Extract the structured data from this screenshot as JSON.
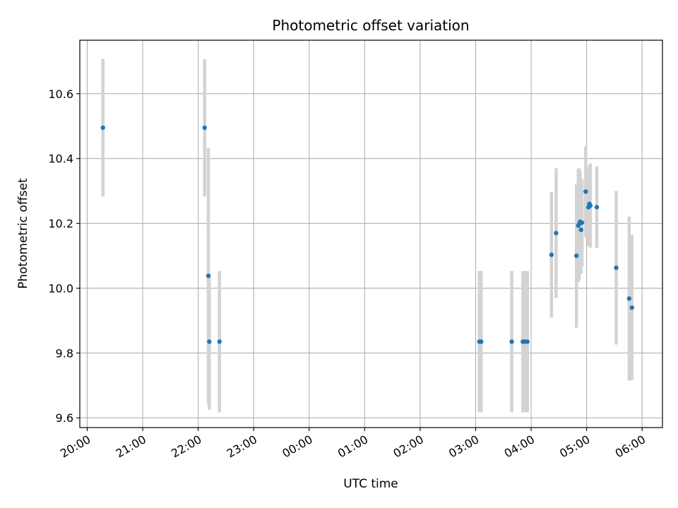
{
  "chart_data": {
    "type": "scatter",
    "title": "Photometric offset variation",
    "xlabel": "UTC time",
    "ylabel": "Photometric offset",
    "x_is_time": true,
    "xlim": [
      "19:52",
      "06:22"
    ],
    "ylim": [
      9.57,
      10.765
    ],
    "x_ticks": [
      "20:00",
      "21:00",
      "22:00",
      "23:00",
      "00:00",
      "01:00",
      "02:00",
      "03:00",
      "04:00",
      "05:00",
      "06:00"
    ],
    "y_ticks": [
      9.6,
      9.8,
      10.0,
      10.2,
      10.4,
      10.6
    ],
    "y_tick_labels": [
      "9.6",
      "9.8",
      "10.0",
      "10.2",
      "10.4",
      "10.6"
    ],
    "grid": true,
    "colors": {
      "point": "#1f77b4",
      "errorbar": "#d3d3d3",
      "grid": "#b0b0b0"
    },
    "points": [
      {
        "x": "20:17",
        "y": 10.495,
        "err": 0.212
      },
      {
        "x": "22:07",
        "y": 10.495,
        "err": 0.212
      },
      {
        "x": "22:11",
        "y": 10.038,
        "err": 0.395
      },
      {
        "x": "22:12",
        "y": 9.835,
        "err": 0.21
      },
      {
        "x": "22:23",
        "y": 9.835,
        "err": 0.218
      },
      {
        "x": "03:04",
        "y": 9.835,
        "err": 0.218
      },
      {
        "x": "03:06",
        "y": 9.835,
        "err": 0.218
      },
      {
        "x": "03:39",
        "y": 9.835,
        "err": 0.218
      },
      {
        "x": "03:51",
        "y": 9.835,
        "err": 0.218
      },
      {
        "x": "03:53",
        "y": 9.835,
        "err": 0.218
      },
      {
        "x": "03:56",
        "y": 9.835,
        "err": 0.218
      },
      {
        "x": "04:22",
        "y": 10.103,
        "err": 0.194
      },
      {
        "x": "04:27",
        "y": 10.17,
        "err": 0.2
      },
      {
        "x": "04:49",
        "y": 10.1,
        "err": 0.222
      },
      {
        "x": "04:51",
        "y": 10.193,
        "err": 0.175
      },
      {
        "x": "04:52",
        "y": 10.198,
        "err": 0.172
      },
      {
        "x": "04:53",
        "y": 10.205,
        "err": 0.156
      },
      {
        "x": "04:54",
        "y": 10.18,
        "err": 0.135
      },
      {
        "x": "04:55",
        "y": 10.202,
        "err": 0.135
      },
      {
        "x": "04:59",
        "y": 10.298,
        "err": 0.14
      },
      {
        "x": "05:02",
        "y": 10.25,
        "err": 0.12
      },
      {
        "x": "05:03",
        "y": 10.26,
        "err": 0.12
      },
      {
        "x": "05:04",
        "y": 10.255,
        "err": 0.13
      },
      {
        "x": "05:11",
        "y": 10.25,
        "err": 0.126
      },
      {
        "x": "05:32",
        "y": 10.063,
        "err": 0.237
      },
      {
        "x": "05:46",
        "y": 9.968,
        "err": 0.253
      },
      {
        "x": "05:49",
        "y": 9.94,
        "err": 0.224
      }
    ]
  }
}
